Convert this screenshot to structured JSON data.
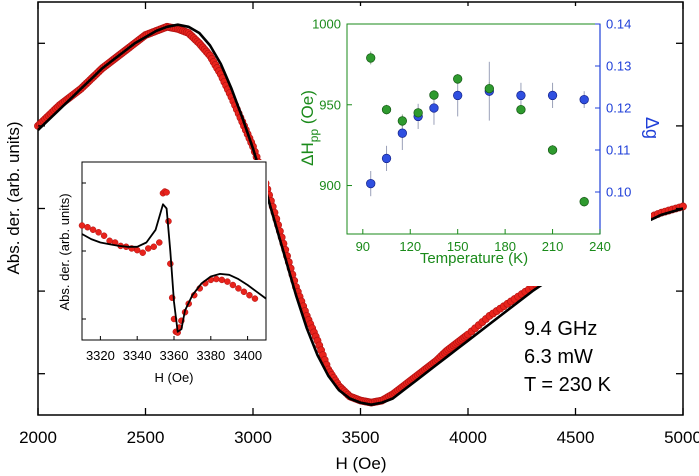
{
  "chart_data": [
    {
      "type": "scatter",
      "role": "main",
      "xlabel": "H (Oe)",
      "ylabel": "Abs. der. (arb. units)",
      "xlim": [
        2000,
        5000
      ],
      "ylim": [
        -1.0,
        1.0
      ],
      "x_ticks": [
        2000,
        2500,
        3000,
        3500,
        4000,
        4500,
        5000
      ],
      "y_ticks_labeled": false,
      "annotations": [
        "9.4 GHz",
        "6.3 mW",
        "T = 230 K"
      ],
      "colors": {
        "data": "#e8231c",
        "fit": "#000000"
      },
      "series": [
        {
          "kind": "points",
          "x": [
            2000,
            2050,
            2100,
            2150,
            2200,
            2250,
            2300,
            2350,
            2400,
            2450,
            2500,
            2550,
            2600,
            2650,
            2700,
            2750,
            2800,
            2850,
            2900,
            2950,
            3000,
            3050,
            3100,
            3150,
            3200,
            3250,
            3300,
            3350,
            3400,
            3450,
            3500,
            3550,
            3600,
            3650,
            3700,
            3750,
            3800,
            3850,
            3900,
            3950,
            4000,
            4100,
            4200,
            4300,
            4400,
            4500,
            4600,
            4700,
            4800,
            4900,
            5000
          ],
          "y": [
            0.4,
            0.45,
            0.5,
            0.54,
            0.58,
            0.63,
            0.68,
            0.72,
            0.76,
            0.8,
            0.84,
            0.86,
            0.88,
            0.87,
            0.85,
            0.8,
            0.74,
            0.65,
            0.54,
            0.42,
            0.3,
            0.15,
            -0.02,
            -0.2,
            -0.38,
            -0.52,
            -0.64,
            -0.78,
            -0.86,
            -0.91,
            -0.93,
            -0.94,
            -0.93,
            -0.9,
            -0.86,
            -0.82,
            -0.78,
            -0.74,
            -0.69,
            -0.65,
            -0.61,
            -0.52,
            -0.45,
            -0.38,
            -0.31,
            -0.24,
            -0.17,
            -0.11,
            -0.06,
            -0.02,
            0.01
          ]
        },
        {
          "kind": "line",
          "x": [
            2000,
            2050,
            2100,
            2150,
            2200,
            2250,
            2300,
            2350,
            2400,
            2450,
            2500,
            2550,
            2600,
            2650,
            2700,
            2750,
            2800,
            2850,
            2900,
            2950,
            3000,
            3050,
            3100,
            3150,
            3200,
            3250,
            3300,
            3350,
            3400,
            3450,
            3500,
            3550,
            3600,
            3650,
            3700,
            3750,
            3800,
            3850,
            3900,
            3950,
            4000,
            4100,
            4200,
            4300,
            4400,
            4500,
            4600,
            4700,
            4800,
            4900,
            5000
          ],
          "y": [
            0.38,
            0.43,
            0.48,
            0.53,
            0.58,
            0.63,
            0.68,
            0.72,
            0.76,
            0.8,
            0.83,
            0.86,
            0.88,
            0.89,
            0.88,
            0.85,
            0.79,
            0.7,
            0.58,
            0.44,
            0.29,
            0.12,
            -0.06,
            -0.24,
            -0.42,
            -0.58,
            -0.71,
            -0.81,
            -0.88,
            -0.92,
            -0.94,
            -0.95,
            -0.94,
            -0.92,
            -0.88,
            -0.84,
            -0.8,
            -0.76,
            -0.72,
            -0.68,
            -0.64,
            -0.56,
            -0.48,
            -0.4,
            -0.33,
            -0.26,
            -0.19,
            -0.13,
            -0.08,
            -0.03,
            0.0
          ]
        }
      ]
    },
    {
      "type": "scatter",
      "role": "inset-left",
      "xlabel": "H (Oe)",
      "ylabel": "Abs. der. (arb. units)",
      "xlim": [
        3310,
        3410
      ],
      "ylim": [
        -1.0,
        1.0
      ],
      "x_ticks": [
        3320,
        3340,
        3360,
        3380,
        3400
      ],
      "y_ticks_labeled": false,
      "colors": {
        "data": "#e8231c",
        "fit": "#000000"
      },
      "series": [
        {
          "kind": "points",
          "x": [
            3310,
            3313,
            3316,
            3319,
            3322,
            3325,
            3328,
            3331,
            3334,
            3337,
            3340,
            3343,
            3346,
            3349,
            3352,
            3354,
            3355,
            3356,
            3357,
            3358,
            3359,
            3360,
            3361,
            3362,
            3363,
            3364,
            3366,
            3368,
            3371,
            3374,
            3377,
            3380,
            3383,
            3386,
            3389,
            3392,
            3395,
            3398,
            3401,
            3404
          ],
          "y": [
            0.3,
            0.28,
            0.25,
            0.22,
            0.18,
            0.12,
            0.1,
            0.06,
            0.05,
            0.03,
            0.01,
            -0.02,
            0.03,
            0.05,
            0.1,
            0.68,
            0.7,
            0.69,
            0.35,
            -0.15,
            -0.55,
            -0.8,
            -0.95,
            -0.96,
            -0.9,
            -0.82,
            -0.72,
            -0.62,
            -0.52,
            -0.44,
            -0.38,
            -0.34,
            -0.33,
            -0.34,
            -0.36,
            -0.4,
            -0.44,
            -0.48,
            -0.52,
            -0.56
          ]
        },
        {
          "kind": "line",
          "x": [
            3310,
            3315,
            3320,
            3325,
            3330,
            3335,
            3340,
            3345,
            3350,
            3352,
            3354,
            3356,
            3358,
            3360,
            3362,
            3364,
            3366,
            3370,
            3375,
            3380,
            3385,
            3390,
            3395,
            3400,
            3405,
            3410
          ],
          "y": [
            0.2,
            0.14,
            0.1,
            0.08,
            0.06,
            0.05,
            0.05,
            0.1,
            0.25,
            0.4,
            0.55,
            0.5,
            0.0,
            -0.6,
            -0.95,
            -0.92,
            -0.7,
            -0.52,
            -0.38,
            -0.3,
            -0.27,
            -0.28,
            -0.33,
            -0.4,
            -0.48,
            -0.56
          ]
        }
      ]
    },
    {
      "type": "scatter",
      "role": "inset-right",
      "xlabel": "Temperature (K)",
      "ylabel_left": "ΔH",
      "ylabel_left_sub": "pp",
      "ylabel_left_unit": " (Oe)",
      "ylabel_right": "Δg",
      "xlim": [
        80,
        240
      ],
      "x_ticks": [
        90,
        120,
        150,
        180,
        210,
        240
      ],
      "ylim_left": [
        870,
        1000
      ],
      "y_ticks_left": [
        900,
        950,
        1000
      ],
      "ylim_right": [
        0.09,
        0.14
      ],
      "y_ticks_right": [
        0.1,
        0.11,
        0.12,
        0.13,
        0.14
      ],
      "colors": {
        "left": "#2ca02c",
        "right": "#1f3fd8",
        "axis_left": "#1a8a1a",
        "axis_right": "#1f3fd8"
      },
      "series": [
        {
          "axis": "left",
          "x": [
            95,
            105,
            115,
            125,
            135,
            150,
            170,
            190,
            210,
            230
          ],
          "y": [
            979,
            947,
            940,
            945,
            956,
            966,
            960,
            947,
            922,
            890
          ],
          "err": [
            4,
            3,
            4,
            3,
            3,
            3,
            4,
            3,
            3,
            3
          ]
        },
        {
          "axis": "right",
          "x": [
            95,
            105,
            115,
            125,
            135,
            150,
            170,
            190,
            210,
            230
          ],
          "y": [
            0.102,
            0.108,
            0.114,
            0.118,
            0.12,
            0.123,
            0.124,
            0.123,
            0.123,
            0.122
          ],
          "err": [
            0.003,
            0.003,
            0.004,
            0.003,
            0.004,
            0.005,
            0.007,
            0.003,
            0.003,
            0.002
          ]
        }
      ]
    }
  ]
}
